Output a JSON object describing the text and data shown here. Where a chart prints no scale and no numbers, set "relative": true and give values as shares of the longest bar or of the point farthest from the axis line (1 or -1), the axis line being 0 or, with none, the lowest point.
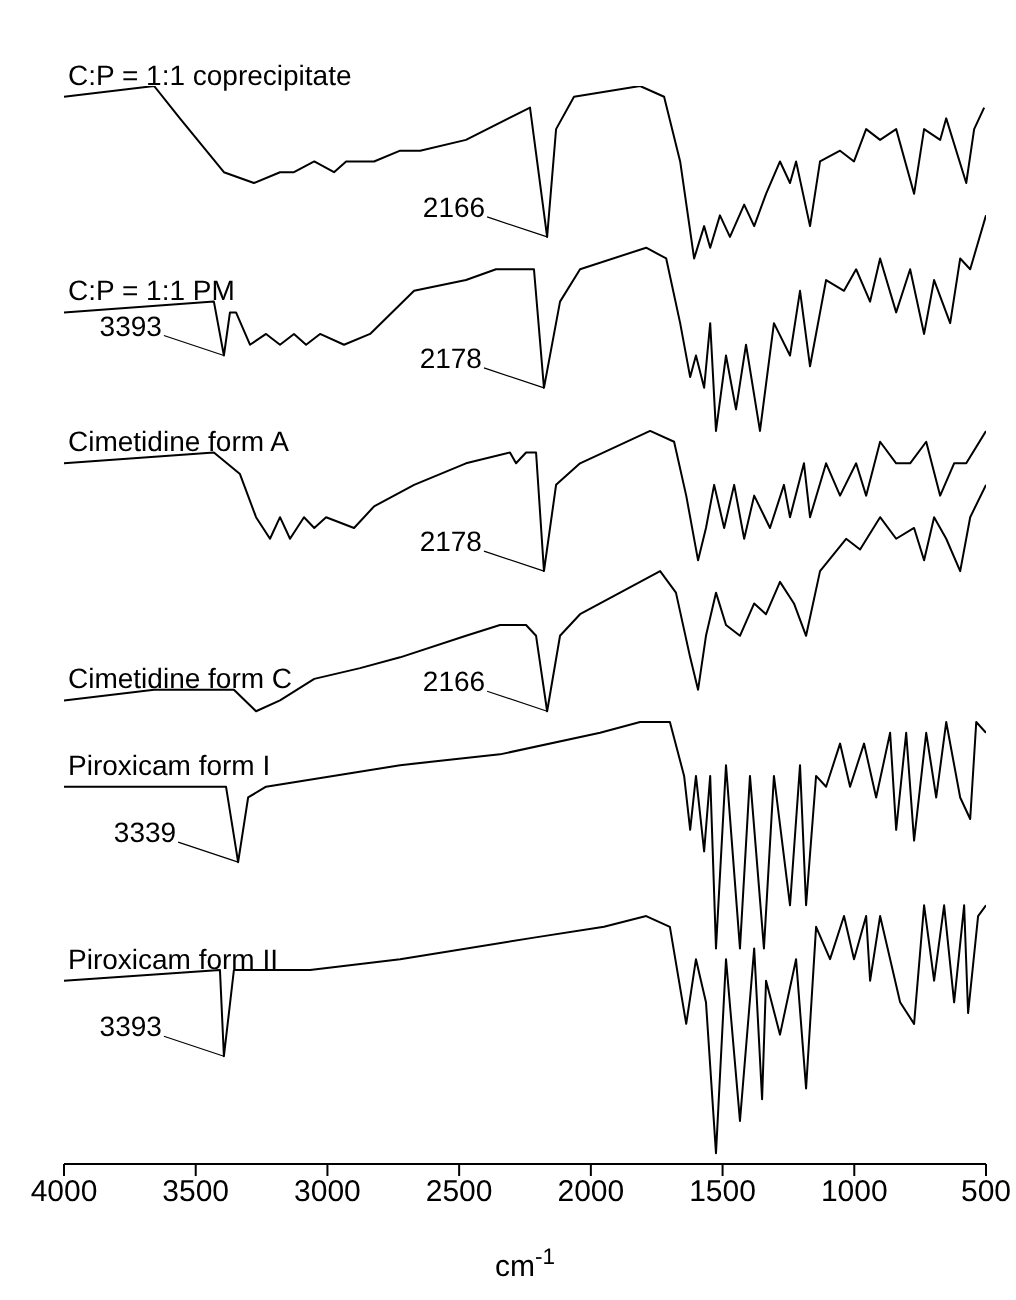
{
  "chart_data": {
    "type": "line",
    "relative": true,
    "xlabel": "cm$^{-1}$",
    "xlim": [
      4000,
      500
    ],
    "xticks": [
      4000,
      3500,
      3000,
      2500,
      2000,
      1500,
      1000,
      500
    ],
    "marker": "none",
    "line_style": "solid",
    "series": [
      {
        "name": "C:P = 1:1 coprecipitate",
        "color": "#000000",
        "x": [
          4000,
          3658,
          3560,
          3393,
          3279,
          3180,
          3127,
          3050,
          2975,
          2929,
          2823,
          2724,
          2648,
          2474,
          2231,
          2166,
          2132,
          2064,
          1813,
          1722,
          1661,
          1608,
          1570,
          1547,
          1510,
          1472,
          1418,
          1380,
          1335,
          1282,
          1244,
          1221,
          1168,
          1130,
          1054,
          1001,
          955,
          902,
          841,
          773,
          735,
          674,
          651,
          575,
          545,
          507
        ],
        "values": [
          0.99,
          1.0,
          0.97,
          0.92,
          0.91,
          0.92,
          0.92,
          0.93,
          0.92,
          0.93,
          0.93,
          0.94,
          0.94,
          0.95,
          0.98,
          0.86,
          0.96,
          0.99,
          1.0,
          0.99,
          0.93,
          0.84,
          0.87,
          0.85,
          0.88,
          0.86,
          0.89,
          0.87,
          0.9,
          0.93,
          0.91,
          0.93,
          0.87,
          0.93,
          0.94,
          0.93,
          0.96,
          0.95,
          0.96,
          0.9,
          0.96,
          0.95,
          0.97,
          0.91,
          0.96,
          0.98
        ]
      },
      {
        "name": "C:P = 1:1 PM",
        "color": "#000000",
        "x": [
          4000,
          3431,
          3393,
          3370,
          3347,
          3294,
          3233,
          3180,
          3127,
          3081,
          3028,
          2937,
          2838,
          2671,
          2474,
          2360,
          2330,
          2292,
          2216,
          2178,
          2117,
          2041,
          1790,
          1714,
          1661,
          1623,
          1601,
          1570,
          1547,
          1525,
          1487,
          1449,
          1411,
          1358,
          1305,
          1244,
          1206,
          1168,
          1107,
          1039,
          993,
          940,
          902,
          841,
          788,
          735,
          697,
          636,
          598,
          560,
          500
        ],
        "values": [
          0.79,
          0.8,
          0.75,
          0.79,
          0.79,
          0.76,
          0.77,
          0.76,
          0.77,
          0.76,
          0.77,
          0.76,
          0.77,
          0.81,
          0.82,
          0.83,
          0.83,
          0.83,
          0.83,
          0.72,
          0.8,
          0.83,
          0.85,
          0.84,
          0.78,
          0.73,
          0.75,
          0.72,
          0.78,
          0.68,
          0.75,
          0.7,
          0.76,
          0.68,
          0.78,
          0.75,
          0.81,
          0.74,
          0.82,
          0.81,
          0.83,
          0.8,
          0.84,
          0.79,
          0.83,
          0.77,
          0.82,
          0.78,
          0.84,
          0.83,
          0.88
        ]
      },
      {
        "name": "Cimetidine form A",
        "color": "#000000",
        "x": [
          4000,
          3431,
          3332,
          3271,
          3218,
          3180,
          3142,
          3089,
          3050,
          3005,
          2899,
          2823,
          2671,
          2474,
          2307,
          2284,
          2246,
          2208,
          2178,
          2132,
          2041,
          1775,
          1684,
          1638,
          1593,
          1563,
          1532,
          1494,
          1456,
          1418,
          1380,
          1320,
          1267,
          1244,
          1191,
          1168,
          1107,
          1054,
          993,
          955,
          902,
          841,
          788,
          727,
          674,
          621,
          575,
          500
        ],
        "values": [
          0.65,
          0.66,
          0.64,
          0.6,
          0.58,
          0.6,
          0.58,
          0.6,
          0.59,
          0.6,
          0.59,
          0.61,
          0.63,
          0.65,
          0.66,
          0.65,
          0.66,
          0.66,
          0.55,
          0.63,
          0.65,
          0.68,
          0.67,
          0.62,
          0.56,
          0.59,
          0.63,
          0.59,
          0.63,
          0.58,
          0.62,
          0.59,
          0.63,
          0.6,
          0.65,
          0.6,
          0.65,
          0.62,
          0.65,
          0.62,
          0.67,
          0.65,
          0.65,
          0.67,
          0.62,
          0.65,
          0.65,
          0.68
        ]
      },
      {
        "name": "Cimetidine form C",
        "color": "#000000",
        "x": [
          4000,
          3658,
          3355,
          3271,
          3180,
          3050,
          2876,
          2724,
          2474,
          2345,
          2246,
          2208,
          2166,
          2117,
          2041,
          1737,
          1677,
          1623,
          1593,
          1563,
          1525,
          1487,
          1434,
          1380,
          1335,
          1282,
          1229,
          1183,
          1130,
          1031,
          978,
          902,
          841,
          773,
          735,
          697,
          651,
          598,
          560,
          500
        ],
        "values": [
          0.43,
          0.44,
          0.44,
          0.42,
          0.43,
          0.45,
          0.46,
          0.47,
          0.49,
          0.5,
          0.5,
          0.49,
          0.42,
          0.49,
          0.51,
          0.55,
          0.53,
          0.47,
          0.44,
          0.49,
          0.53,
          0.5,
          0.49,
          0.52,
          0.51,
          0.54,
          0.52,
          0.49,
          0.55,
          0.58,
          0.57,
          0.6,
          0.58,
          0.59,
          0.56,
          0.6,
          0.58,
          0.55,
          0.6,
          0.63
        ]
      },
      {
        "name": "Piroxicam form I",
        "color": "#000000",
        "x": [
          4000,
          3734,
          3385,
          3339,
          3301,
          3233,
          2724,
          2345,
          1965,
          1813,
          1700,
          1646,
          1623,
          1601,
          1570,
          1547,
          1525,
          1487,
          1434,
          1396,
          1343,
          1305,
          1244,
          1206,
          1183,
          1145,
          1107,
          1054,
          1016,
          963,
          917,
          864,
          841,
          803,
          773,
          727,
          689,
          651,
          598,
          560,
          537,
          500
        ],
        "values": [
          0.35,
          0.35,
          0.35,
          0.28,
          0.34,
          0.35,
          0.37,
          0.38,
          0.4,
          0.41,
          0.41,
          0.36,
          0.31,
          0.36,
          0.29,
          0.36,
          0.2,
          0.37,
          0.2,
          0.36,
          0.2,
          0.36,
          0.24,
          0.37,
          0.24,
          0.36,
          0.35,
          0.39,
          0.35,
          0.39,
          0.34,
          0.4,
          0.31,
          0.4,
          0.3,
          0.4,
          0.34,
          0.41,
          0.34,
          0.32,
          0.41,
          0.4
        ]
      },
      {
        "name": "Piroxicam form II",
        "color": "#000000",
        "x": [
          4000,
          3408,
          3393,
          3355,
          3066,
          2724,
          2216,
          1950,
          1790,
          1700,
          1638,
          1601,
          1563,
          1525,
          1487,
          1434,
          1380,
          1350,
          1335,
          1282,
          1221,
          1183,
          1145,
          1092,
          1039,
          1001,
          955,
          940,
          902,
          826,
          773,
          735,
          697,
          659,
          621,
          583,
          568,
          530,
          500
        ],
        "values": [
          0.17,
          0.18,
          0.1,
          0.18,
          0.18,
          0.19,
          0.21,
          0.22,
          0.23,
          0.22,
          0.13,
          0.19,
          0.15,
          0.01,
          0.19,
          0.04,
          0.2,
          0.06,
          0.17,
          0.12,
          0.19,
          0.07,
          0.22,
          0.19,
          0.23,
          0.19,
          0.23,
          0.17,
          0.23,
          0.15,
          0.13,
          0.24,
          0.17,
          0.24,
          0.15,
          0.24,
          0.14,
          0.23,
          0.24
        ]
      }
    ],
    "annotations": [
      {
        "text": "2166",
        "x": 2166,
        "y": 0.86
      },
      {
        "text": "3393",
        "x": 3393,
        "y": 0.75
      },
      {
        "text": "2178",
        "x": 2178,
        "y": 0.72
      },
      {
        "text": "2178",
        "x": 2178,
        "y": 0.55
      },
      {
        "text": "2166",
        "x": 2166,
        "y": 0.42
      },
      {
        "text": "3339",
        "x": 3339,
        "y": 0.28
      },
      {
        "text": "3393",
        "x": 3393,
        "y": 0.1
      }
    ]
  }
}
